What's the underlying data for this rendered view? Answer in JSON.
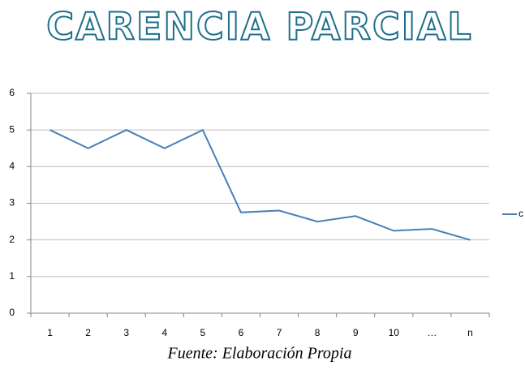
{
  "chart_data": {
    "type": "line",
    "title": "CARENCIA PARCIAL",
    "categories": [
      "1",
      "2",
      "3",
      "4",
      "5",
      "6",
      "7",
      "8",
      "9",
      "10",
      "…",
      "n"
    ],
    "series": [
      {
        "name": "c",
        "color": "#4a7ebb",
        "values": [
          5,
          4.5,
          5,
          4.5,
          5,
          2.75,
          2.8,
          2.5,
          2.65,
          2.25,
          2.3,
          2
        ]
      }
    ],
    "ylim": [
      0,
      6
    ],
    "yticks": [
      0,
      1,
      2,
      3,
      4,
      5,
      6
    ],
    "grid": true,
    "legend": "right",
    "source": "Fuente: Elaboración Propia"
  }
}
